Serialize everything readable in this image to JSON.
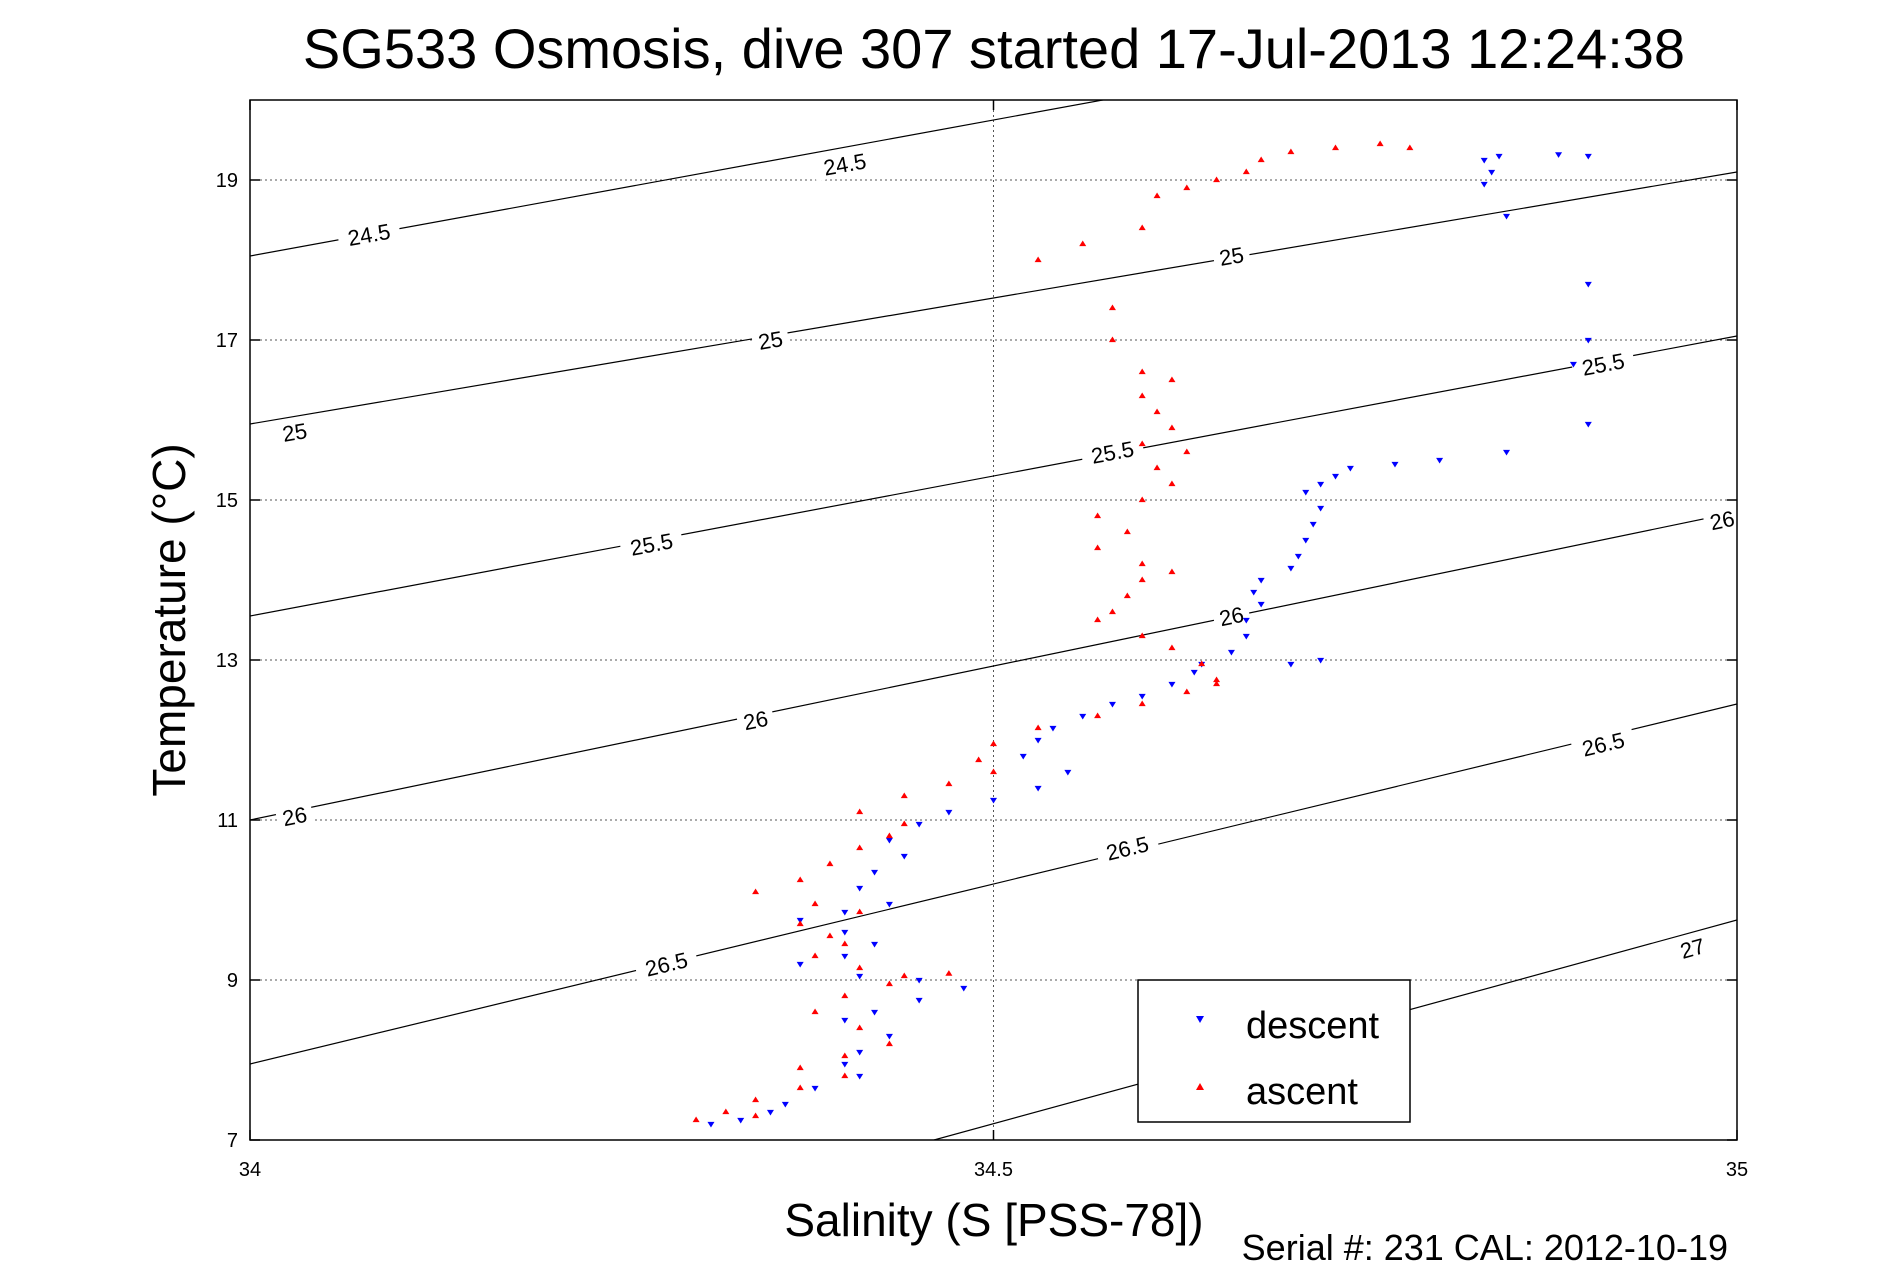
{
  "chart_data": {
    "type": "scatter",
    "title": "SG533 Osmosis, dive 307 started 17-Jul-2013 12:24:38",
    "xlabel": "Salinity (S [PSS-78])",
    "ylabel": "Temperature (°C)",
    "xlim": [
      34,
      35
    ],
    "ylim": [
      7,
      20
    ],
    "x_ticks": [
      34,
      34.5,
      35
    ],
    "x_tick_labels": [
      "34",
      "34.5",
      "35"
    ],
    "y_ticks": [
      7,
      9,
      11,
      13,
      15,
      17,
      19
    ],
    "y_tick_labels": [
      "7",
      "9",
      "11",
      "13",
      "15",
      "17",
      "19"
    ],
    "grid": true,
    "legend_position": "bottom-right",
    "footer": "Serial #: 231  CAL: 2012-10-19",
    "density_contours": [
      {
        "label": "24.5",
        "points": [
          [
            34.0,
            18.05
          ],
          [
            35.0,
            21.45
          ]
        ],
        "label_positions": [
          [
            34.08,
            18.32
          ],
          [
            34.4,
            19.2
          ]
        ]
      },
      {
        "label": "25",
        "points": [
          [
            34.0,
            15.95
          ],
          [
            35.0,
            19.1
          ]
        ],
        "label_positions": [
          [
            34.03,
            15.85
          ],
          [
            34.35,
            17.0
          ],
          [
            34.66,
            18.05
          ]
        ]
      },
      {
        "label": "25.5",
        "points": [
          [
            34.0,
            13.55
          ],
          [
            35.0,
            17.05
          ]
        ],
        "label_positions": [
          [
            34.27,
            14.45
          ],
          [
            34.58,
            15.6
          ],
          [
            34.91,
            16.7
          ]
        ]
      },
      {
        "label": "26",
        "points": [
          [
            34.0,
            11.0
          ],
          [
            35.0,
            14.85
          ]
        ],
        "label_positions": [
          [
            34.03,
            11.05
          ],
          [
            34.34,
            12.25
          ],
          [
            34.66,
            13.55
          ],
          [
            34.99,
            14.75
          ]
        ]
      },
      {
        "label": "26.5",
        "points": [
          [
            34.0,
            7.95
          ],
          [
            35.0,
            12.45
          ]
        ],
        "label_positions": [
          [
            34.28,
            9.2
          ],
          [
            34.59,
            10.65
          ],
          [
            34.91,
            11.95
          ]
        ]
      },
      {
        "label": "27",
        "points": [
          [
            34.46,
            7.0
          ],
          [
            35.0,
            9.75
          ]
        ],
        "label_positions": [
          [
            34.97,
            9.4
          ]
        ]
      }
    ],
    "series": [
      {
        "name": "descent",
        "color": "#0000ff",
        "marker": "triangle-down",
        "points": [
          [
            34.9,
            19.3
          ],
          [
            34.88,
            19.32
          ],
          [
            34.84,
            19.3
          ],
          [
            34.83,
            19.25
          ],
          [
            34.835,
            19.1
          ],
          [
            34.83,
            18.95
          ],
          [
            34.845,
            18.55
          ],
          [
            34.9,
            17.7
          ],
          [
            34.9,
            17.0
          ],
          [
            34.89,
            16.7
          ],
          [
            34.9,
            15.95
          ],
          [
            34.845,
            15.6
          ],
          [
            34.8,
            15.5
          ],
          [
            34.77,
            15.45
          ],
          [
            34.74,
            15.4
          ],
          [
            34.73,
            15.3
          ],
          [
            34.72,
            15.2
          ],
          [
            34.71,
            15.1
          ],
          [
            34.72,
            14.9
          ],
          [
            34.715,
            14.7
          ],
          [
            34.71,
            14.5
          ],
          [
            34.705,
            14.3
          ],
          [
            34.7,
            14.15
          ],
          [
            34.68,
            14.0
          ],
          [
            34.675,
            13.85
          ],
          [
            34.68,
            13.7
          ],
          [
            34.67,
            13.5
          ],
          [
            34.67,
            13.3
          ],
          [
            34.66,
            13.1
          ],
          [
            34.64,
            12.95
          ],
          [
            34.635,
            12.85
          ],
          [
            34.62,
            12.7
          ],
          [
            34.6,
            12.55
          ],
          [
            34.58,
            12.45
          ],
          [
            34.56,
            12.3
          ],
          [
            34.54,
            12.15
          ],
          [
            34.53,
            12.0
          ],
          [
            34.52,
            11.8
          ],
          [
            34.55,
            11.6
          ],
          [
            34.53,
            11.4
          ],
          [
            34.5,
            11.25
          ],
          [
            34.47,
            11.1
          ],
          [
            34.45,
            10.95
          ],
          [
            34.43,
            10.75
          ],
          [
            34.44,
            10.55
          ],
          [
            34.42,
            10.35
          ],
          [
            34.41,
            10.15
          ],
          [
            34.43,
            9.95
          ],
          [
            34.4,
            9.85
          ],
          [
            34.37,
            9.75
          ],
          [
            34.4,
            9.6
          ],
          [
            34.42,
            9.45
          ],
          [
            34.4,
            9.3
          ],
          [
            34.37,
            9.2
          ],
          [
            34.41,
            9.05
          ],
          [
            34.45,
            9.0
          ],
          [
            34.48,
            8.9
          ],
          [
            34.45,
            8.75
          ],
          [
            34.42,
            8.6
          ],
          [
            34.4,
            8.5
          ],
          [
            34.43,
            8.3
          ],
          [
            34.41,
            8.1
          ],
          [
            34.4,
            7.95
          ],
          [
            34.41,
            7.8
          ],
          [
            34.38,
            7.65
          ],
          [
            34.36,
            7.45
          ],
          [
            34.35,
            7.35
          ],
          [
            34.33,
            7.25
          ],
          [
            34.31,
            7.2
          ],
          [
            34.72,
            13.0
          ],
          [
            34.7,
            12.95
          ]
        ]
      },
      {
        "name": "ascent",
        "color": "#ff0000",
        "marker": "triangle-up",
        "points": [
          [
            34.78,
            19.4
          ],
          [
            34.76,
            19.45
          ],
          [
            34.73,
            19.4
          ],
          [
            34.7,
            19.35
          ],
          [
            34.68,
            19.25
          ],
          [
            34.67,
            19.1
          ],
          [
            34.65,
            19.0
          ],
          [
            34.63,
            18.9
          ],
          [
            34.61,
            18.8
          ],
          [
            34.6,
            18.4
          ],
          [
            34.56,
            18.2
          ],
          [
            34.53,
            18.0
          ],
          [
            34.58,
            17.4
          ],
          [
            34.58,
            17.0
          ],
          [
            34.6,
            16.6
          ],
          [
            34.62,
            16.5
          ],
          [
            34.6,
            16.3
          ],
          [
            34.61,
            16.1
          ],
          [
            34.62,
            15.9
          ],
          [
            34.6,
            15.7
          ],
          [
            34.63,
            15.6
          ],
          [
            34.61,
            15.4
          ],
          [
            34.62,
            15.2
          ],
          [
            34.6,
            15.0
          ],
          [
            34.57,
            14.8
          ],
          [
            34.59,
            14.6
          ],
          [
            34.57,
            14.4
          ],
          [
            34.6,
            14.2
          ],
          [
            34.62,
            14.1
          ],
          [
            34.6,
            14.0
          ],
          [
            34.59,
            13.8
          ],
          [
            34.58,
            13.6
          ],
          [
            34.57,
            13.5
          ],
          [
            34.6,
            13.3
          ],
          [
            34.62,
            13.15
          ],
          [
            34.64,
            12.95
          ],
          [
            34.65,
            12.75
          ],
          [
            34.63,
            12.6
          ],
          [
            34.6,
            12.45
          ],
          [
            34.57,
            12.3
          ],
          [
            34.53,
            12.15
          ],
          [
            34.5,
            11.95
          ],
          [
            34.49,
            11.75
          ],
          [
            34.5,
            11.6
          ],
          [
            34.47,
            11.45
          ],
          [
            34.44,
            11.3
          ],
          [
            34.41,
            11.1
          ],
          [
            34.44,
            10.95
          ],
          [
            34.43,
            10.8
          ],
          [
            34.41,
            10.65
          ],
          [
            34.39,
            10.45
          ],
          [
            34.37,
            10.25
          ],
          [
            34.34,
            10.1
          ],
          [
            34.38,
            9.95
          ],
          [
            34.41,
            9.85
          ],
          [
            34.37,
            9.7
          ],
          [
            34.39,
            9.55
          ],
          [
            34.4,
            9.45
          ],
          [
            34.38,
            9.3
          ],
          [
            34.41,
            9.15
          ],
          [
            34.44,
            9.05
          ],
          [
            34.47,
            9.08
          ],
          [
            34.43,
            8.95
          ],
          [
            34.4,
            8.8
          ],
          [
            34.38,
            8.6
          ],
          [
            34.41,
            8.4
          ],
          [
            34.43,
            8.2
          ],
          [
            34.4,
            8.05
          ],
          [
            34.37,
            7.9
          ],
          [
            34.4,
            7.8
          ],
          [
            34.37,
            7.65
          ],
          [
            34.34,
            7.5
          ],
          [
            34.32,
            7.35
          ],
          [
            34.3,
            7.25
          ],
          [
            34.34,
            7.3
          ],
          [
            34.65,
            12.7
          ]
        ]
      }
    ]
  }
}
